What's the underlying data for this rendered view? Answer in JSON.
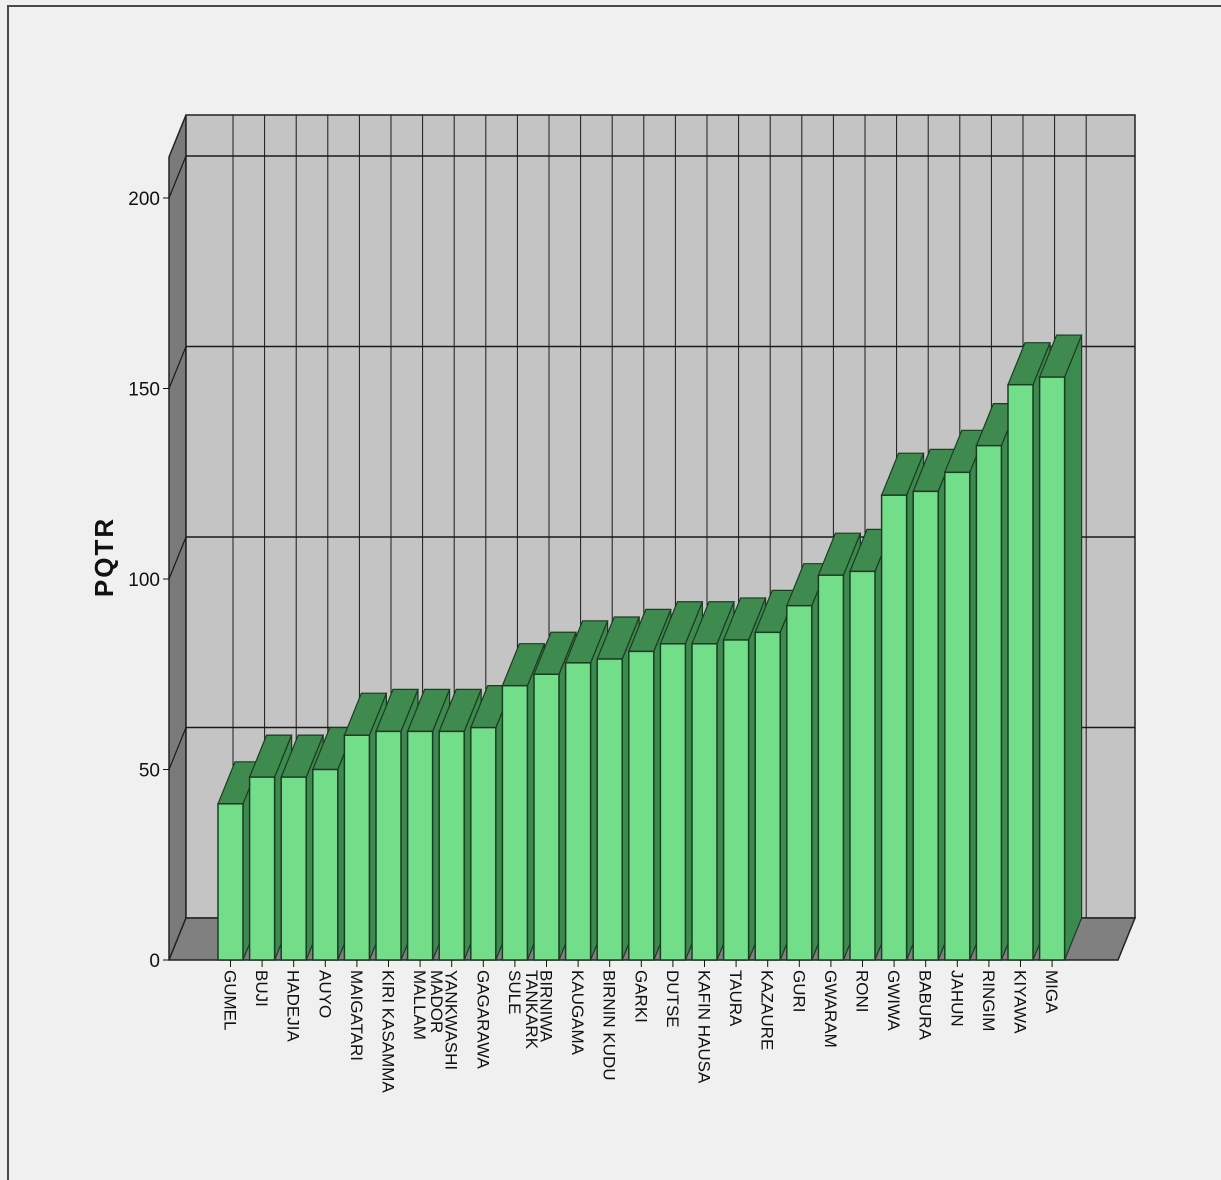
{
  "chart_data": {
    "type": "bar",
    "ylabel": "PQTR",
    "xlabel": "",
    "ylim": [
      0,
      220
    ],
    "yticks": [
      0,
      50,
      100,
      150,
      200
    ],
    "grid": true,
    "categories": [
      "GUMEL",
      "BUJI",
      "HADEJIA",
      "AUYO",
      "MAIGATARI",
      "KIRI KASAMMA",
      "MALLAM\nMADOR",
      "YANKWASHI",
      "GAGARAWA",
      "SULE\nTANKARK",
      "BIRNIWA",
      "KAUGAMA",
      "BIRNIN KUDU",
      "GARKI",
      "DUTSE",
      "KAFIN HAUSA",
      "TAURA",
      "KAZAURE",
      "GURI",
      "GWARAM",
      "RONI",
      "GWIWA",
      "BABURA",
      "JAHUN",
      "RINGIM",
      "KIYAWA",
      "MIGA"
    ],
    "values": [
      41,
      48,
      48,
      50,
      59,
      60,
      60,
      60,
      61,
      72,
      75,
      78,
      79,
      81,
      83,
      83,
      84,
      86,
      93,
      101,
      102,
      122,
      123,
      128,
      135,
      151,
      153
    ],
    "colors": {
      "bar_front": "#72de8a",
      "bar_top": "#3f8a4f",
      "bar_side": "#3b8a4e",
      "back_wall": "#c4c4c4",
      "side_wall": "#7a7a7a",
      "floor": "#808080",
      "grid": "#1a1a1a"
    }
  }
}
